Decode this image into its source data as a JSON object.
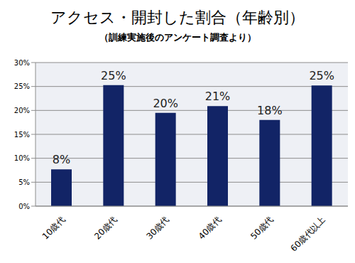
{
  "chart_data": {
    "type": "bar",
    "title": "アクセス・開封した割合（年齢別）",
    "subtitle": "（訓練実施後のアンケート調査より）",
    "categories": [
      "10歳代",
      "20歳代",
      "30歳代",
      "40歳代",
      "50歳代",
      "60歳代以上"
    ],
    "values": [
      7.7,
      25.3,
      19.5,
      20.9,
      18,
      25.2
    ],
    "value_labels": [
      "8%",
      "25%",
      "20%",
      "21%",
      "18%",
      "25%"
    ],
    "data_labels": true,
    "color": "#122466",
    "ylim": [
      0,
      30
    ],
    "yticks": [
      {
        "value": 0,
        "label": "0%"
      },
      {
        "value": 5,
        "label": "5%"
      },
      {
        "value": 10,
        "label": "10%"
      },
      {
        "value": 15,
        "label": "15%"
      },
      {
        "value": 20,
        "label": "20%"
      },
      {
        "value": 25,
        "label": "25%"
      },
      {
        "value": 30,
        "label": "30%"
      }
    ],
    "grid": true
  }
}
